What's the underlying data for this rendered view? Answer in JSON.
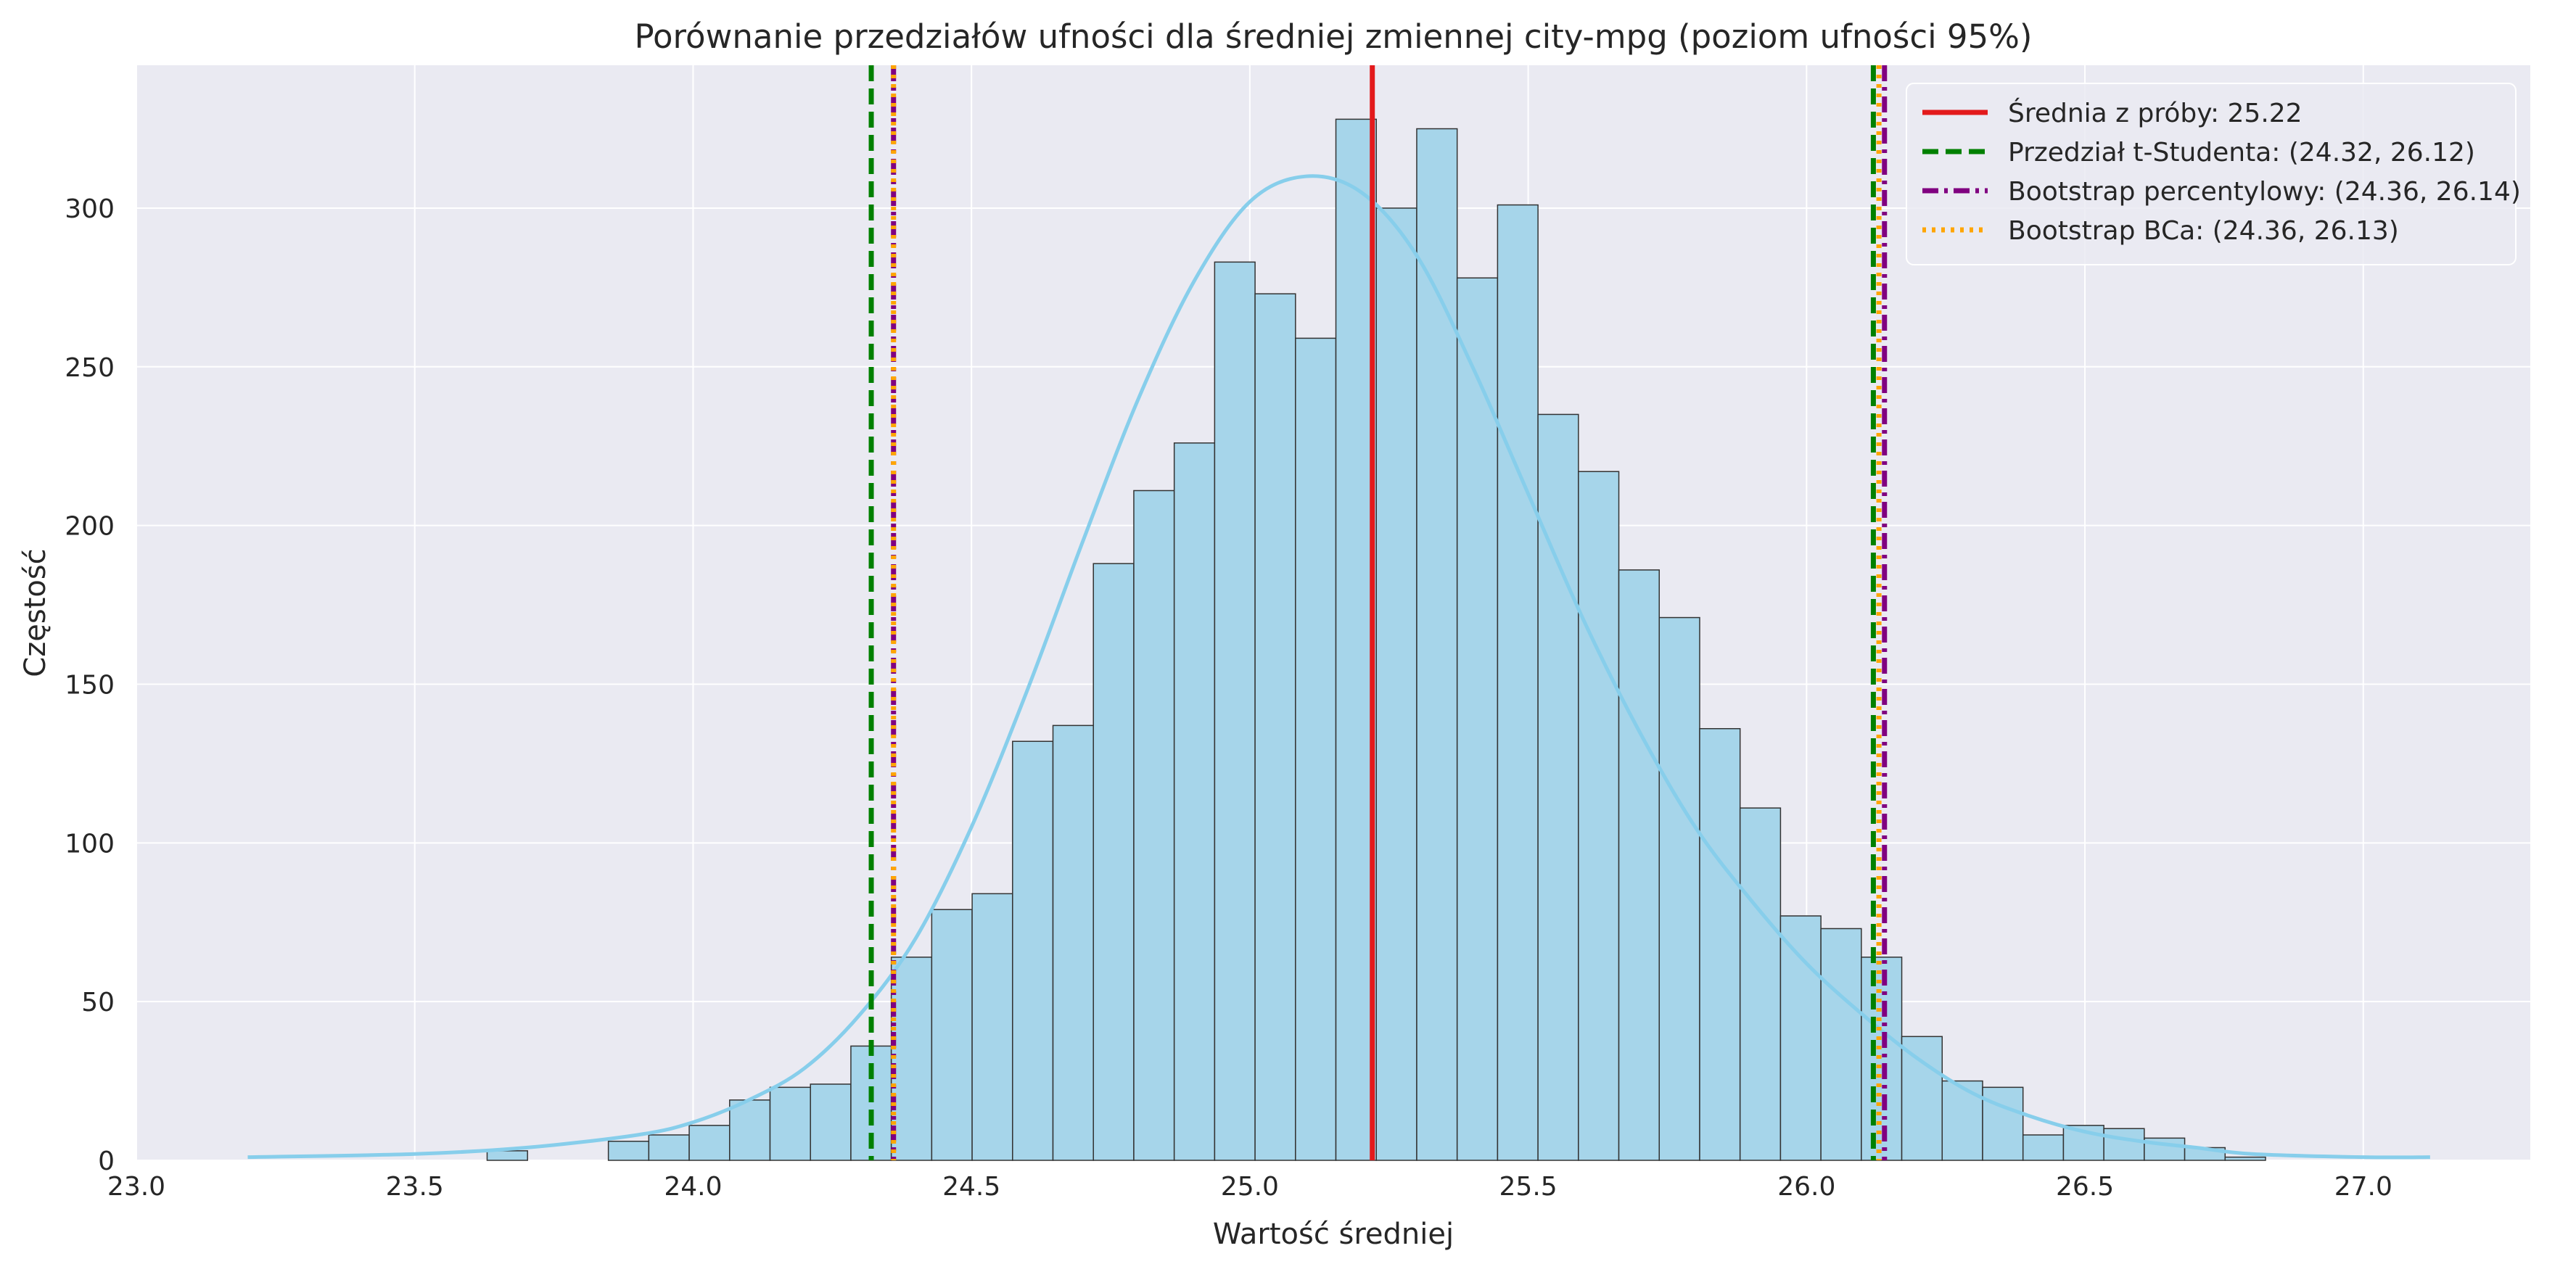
{
  "chart_data": {
    "type": "bar",
    "title": "Porównanie przedziałów ufności dla średniej zmiennej city-mpg (poziom ufności 95%)",
    "xlabel": "Wartość średniej",
    "ylabel": "Częstość",
    "xlim": [
      23.0,
      27.3
    ],
    "ylim": [
      0,
      345
    ],
    "xticks": [
      "23.0",
      "23.5",
      "24.0",
      "24.5",
      "25.0",
      "25.5",
      "26.0",
      "26.5",
      "27.0"
    ],
    "yticks": [
      "0",
      "50",
      "100",
      "150",
      "200",
      "250",
      "300"
    ],
    "grid": true,
    "legend_position": "top-right",
    "histogram": {
      "bin_start": 23.63,
      "bin_width": 0.0726,
      "counts": [
        3,
        0,
        0,
        6,
        8,
        11,
        19,
        23,
        24,
        36,
        64,
        79,
        84,
        132,
        137,
        188,
        211,
        226,
        283,
        273,
        259,
        328,
        300,
        325,
        278,
        301,
        235,
        217,
        186,
        171,
        136,
        111,
        77,
        73,
        64,
        39,
        25,
        23,
        8,
        11,
        10,
        7,
        4,
        1
      ],
      "color": "#A6D5EA",
      "edge_color": "#333333"
    },
    "kde": {
      "color": "#87CEEB",
      "x": [
        23.2,
        23.5,
        23.7,
        23.9,
        24.0,
        24.1,
        24.2,
        24.3,
        24.4,
        24.5,
        24.6,
        24.7,
        24.8,
        24.9,
        25.0,
        25.1,
        25.2,
        25.3,
        25.4,
        25.5,
        25.6,
        25.7,
        25.8,
        25.9,
        26.0,
        26.1,
        26.2,
        26.3,
        26.4,
        26.5,
        26.6,
        26.7,
        26.8,
        27.0,
        27.12
      ],
      "y": [
        1,
        2,
        4,
        8,
        12,
        19,
        29,
        46,
        70,
        105,
        148,
        195,
        240,
        277,
        302,
        310,
        305,
        285,
        250,
        210,
        170,
        135,
        105,
        82,
        62,
        46,
        32,
        21,
        14,
        9,
        6,
        4,
        2,
        1,
        1
      ]
    },
    "vlines": [
      {
        "x": 25.22,
        "color": "#E31A1C",
        "style": "solid"
      },
      {
        "x": 24.32,
        "color": "#008000",
        "style": "dashed"
      },
      {
        "x": 26.12,
        "color": "#008000",
        "style": "dashed"
      },
      {
        "x": 24.36,
        "color": "#800080",
        "style": "dashdot"
      },
      {
        "x": 26.14,
        "color": "#800080",
        "style": "dashdot"
      },
      {
        "x": 24.36,
        "color": "#FFA500",
        "style": "dotted"
      },
      {
        "x": 26.13,
        "color": "#FFA500",
        "style": "dotted"
      }
    ],
    "series": [
      {
        "name": "Średnia z próby: 25.22",
        "color": "#E31A1C",
        "style": "solid"
      },
      {
        "name": "Przedział t-Studenta: (24.32, 26.12)",
        "color": "#008000",
        "style": "dashed"
      },
      {
        "name": "Bootstrap percentylowy: (24.36, 26.14)",
        "color": "#800080",
        "style": "dashdot"
      },
      {
        "name": "Bootstrap BCa: (24.36, 26.13)",
        "color": "#FFA500",
        "style": "dotted"
      }
    ],
    "background_color": "#EAEAF2",
    "grid_color": "#FFFFFF"
  }
}
